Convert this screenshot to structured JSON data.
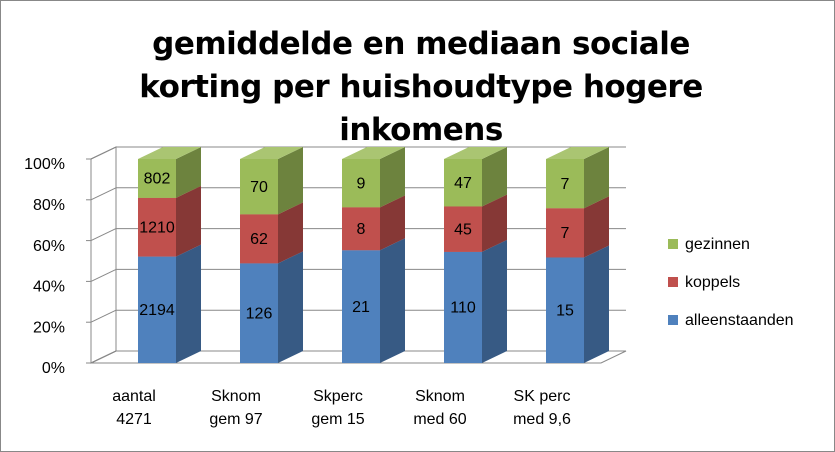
{
  "chart_data": {
    "type": "bar",
    "stacking": "percent",
    "title": "gemiddelde en mediaan sociale korting per huishoudtype hogere inkomens",
    "categories": [
      "aantal 4271",
      "Sknom gem 97",
      "Skperc gem 15",
      "Sknom med 60",
      "SK perc med 9,6"
    ],
    "series": [
      {
        "name": "alleenstaanden",
        "color": "#4f81bd",
        "values": [
          2194,
          126,
          21,
          110,
          15
        ]
      },
      {
        "name": "koppels",
        "color": "#c0504d",
        "values": [
          1210,
          62,
          8,
          45,
          7
        ]
      },
      {
        "name": "gezinnen",
        "color": "#9bbb59",
        "values": [
          802,
          70,
          9,
          47,
          7
        ]
      }
    ],
    "ylim": [
      0,
      100
    ],
    "yticks": [
      {
        "value": 0,
        "label": "0%"
      },
      {
        "value": 20,
        "label": "20%"
      },
      {
        "value": 40,
        "label": "40%"
      },
      {
        "value": 60,
        "label": "60%"
      },
      {
        "value": 80,
        "label": "80%"
      },
      {
        "value": 100,
        "label": "100%"
      }
    ],
    "grid": true,
    "legend": "right"
  }
}
